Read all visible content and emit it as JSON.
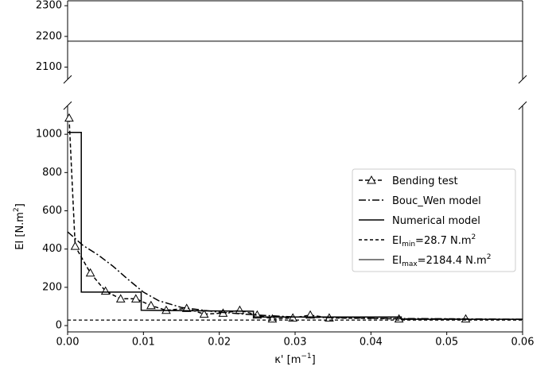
{
  "chart_data": [
    {
      "type": "line",
      "xlim": [
        0,
        0.06
      ],
      "ylim": [
        2060,
        2316
      ],
      "yticks": [
        2100,
        2200,
        2300
      ],
      "series": [
        {
          "name": [
            "EI",
            {
              "sub": "max"
            },
            "=2184.4 N.m",
            {
              "sup": "2"
            }
          ],
          "color": "#000000",
          "style": "hline",
          "y": 2184.4
        }
      ]
    },
    {
      "type": "line",
      "xlabel": [
        "κ' [m",
        {
          "sup": "−1"
        },
        "]"
      ],
      "ylabel": [
        "EI [N.m",
        {
          "sup": "2"
        },
        "]"
      ],
      "xlim": [
        0,
        0.06
      ],
      "ylim": [
        -33,
        1150
      ],
      "xticks": [
        {
          "value": 0,
          "label": "0.00"
        },
        0.01,
        0.02,
        0.03,
        0.04,
        0.05,
        0.06
      ],
      "yticks": [
        0,
        200,
        400,
        600,
        800,
        1000
      ],
      "legend": "center right",
      "series": [
        {
          "name": [
            "Bending test"
          ],
          "color": "#000000",
          "style": "dashed-marker",
          "x": [
            0.0002,
            0.001,
            0.003,
            0.005,
            0.007,
            0.009,
            0.011,
            0.013,
            0.0157,
            0.018,
            0.0205,
            0.0227,
            0.025,
            0.027,
            0.0297,
            0.032,
            0.0345,
            0.0437,
            0.0525
          ],
          "values": [
            1085,
            415,
            275,
            180,
            140,
            140,
            105,
            80,
            90,
            60,
            65,
            80,
            55,
            35,
            40,
            55,
            40,
            35,
            35
          ]
        },
        {
          "name": [
            "Bouc_Wen model"
          ],
          "color": "#000000",
          "style": "dashdot",
          "x": [
            0,
            0.002,
            0.004,
            0.006,
            0.008,
            0.01,
            0.012,
            0.015,
            0.02,
            0.025,
            0.03,
            0.04,
            0.06
          ],
          "values": [
            490,
            420,
            370,
            310,
            240,
            175,
            130,
            95,
            70,
            55,
            45,
            38,
            33
          ]
        },
        {
          "name": [
            "Numerical model"
          ],
          "color": "#000000",
          "style": "solid",
          "x": [
            0,
            0.0018,
            0.0018,
            0.0097,
            0.0097,
            0.0245,
            0.0245,
            0.044,
            0.044,
            0.06
          ],
          "values": [
            1010,
            1010,
            175,
            175,
            80,
            75,
            45,
            45,
            33,
            33
          ]
        },
        {
          "name": [
            "EI",
            {
              "sub": "min"
            },
            "=28.7 N.m",
            {
              "sup": "2"
            }
          ],
          "color": "#000000",
          "style": "hline-dashed",
          "y": 28.7
        }
      ]
    }
  ]
}
